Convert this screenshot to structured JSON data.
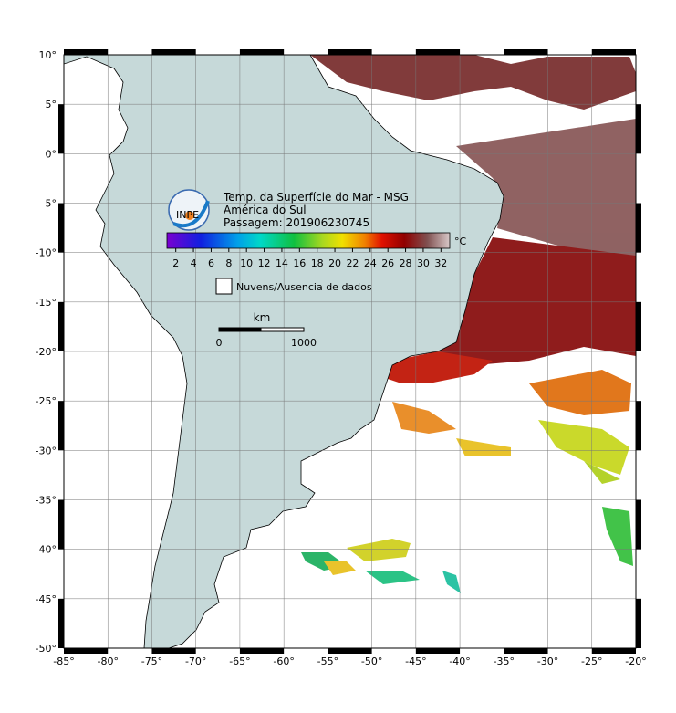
{
  "map": {
    "title_lines": [
      "Temp. da Superfície do Mar - MSG",
      "América do Sul",
      "Passagem: 201906230745"
    ],
    "logo": "INPE",
    "lon_range": [
      -85,
      -20
    ],
    "lat_range": [
      -50,
      10
    ],
    "lon_ticks": [
      {
        "value": -85,
        "label": "-85°"
      },
      {
        "value": -80,
        "label": "-80°"
      },
      {
        "value": -75,
        "label": "-75°"
      },
      {
        "value": -70,
        "label": "-70°"
      },
      {
        "value": -65,
        "label": "-65°"
      },
      {
        "value": -60,
        "label": "-60°"
      },
      {
        "value": -55,
        "label": "-55°"
      },
      {
        "value": -50,
        "label": "-50°"
      },
      {
        "value": -45,
        "label": "-45°"
      },
      {
        "value": -40,
        "label": "-40°"
      },
      {
        "value": -35,
        "label": "-35°"
      },
      {
        "value": -30,
        "label": "-30°"
      },
      {
        "value": -25,
        "label": "-25°"
      },
      {
        "value": -20,
        "label": "-20°"
      }
    ],
    "lat_ticks": [
      {
        "value": 10,
        "label": "10°"
      },
      {
        "value": 5,
        "label": "5°"
      },
      {
        "value": 0,
        "label": "0°"
      },
      {
        "value": -5,
        "label": "-5°"
      },
      {
        "value": -10,
        "label": "-10°"
      },
      {
        "value": -15,
        "label": "-15°"
      },
      {
        "value": -20,
        "label": "-20°"
      },
      {
        "value": -25,
        "label": "-25°"
      },
      {
        "value": -30,
        "label": "-30°"
      },
      {
        "value": -35,
        "label": "-35°"
      },
      {
        "value": -40,
        "label": "-40°"
      },
      {
        "value": -45,
        "label": "-45°"
      },
      {
        "value": -50,
        "label": "-50°"
      }
    ],
    "colorbar": {
      "range": [
        1,
        33
      ],
      "ticks": [
        2,
        4,
        6,
        8,
        10,
        12,
        14,
        16,
        18,
        20,
        22,
        24,
        26,
        28,
        30,
        32
      ],
      "unit": "°C"
    },
    "legend_no_data": "Nuvens/Ausencia de dados",
    "scale": {
      "unit": "km",
      "labels": [
        0,
        1000
      ]
    }
  }
}
